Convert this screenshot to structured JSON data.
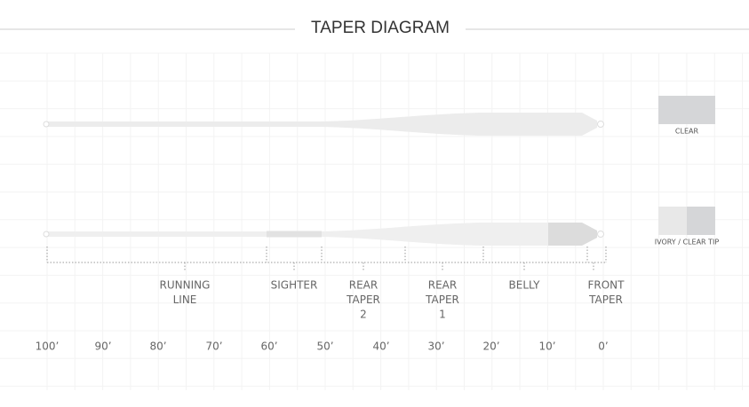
{
  "title": "TAPER DIAGRAM",
  "swatches": [
    {
      "label": "CLEAR"
    },
    {
      "label": "IVORY / CLEAR TIP"
    }
  ],
  "sections": [
    {
      "lines": [
        "RUNNING",
        "LINE"
      ]
    },
    {
      "lines": [
        "SIGHTER"
      ]
    },
    {
      "lines": [
        "REAR",
        "TAPER",
        "2"
      ]
    },
    {
      "lines": [
        "REAR",
        "TAPER",
        "1"
      ]
    },
    {
      "lines": [
        "BELLY"
      ]
    },
    {
      "lines": [
        "FRONT",
        "TAPER"
      ]
    }
  ],
  "scale": [
    "100’",
    "90’",
    "80’",
    "70’",
    "60’",
    "50’",
    "40’",
    "30’",
    "20’",
    "10’",
    "0’"
  ]
}
